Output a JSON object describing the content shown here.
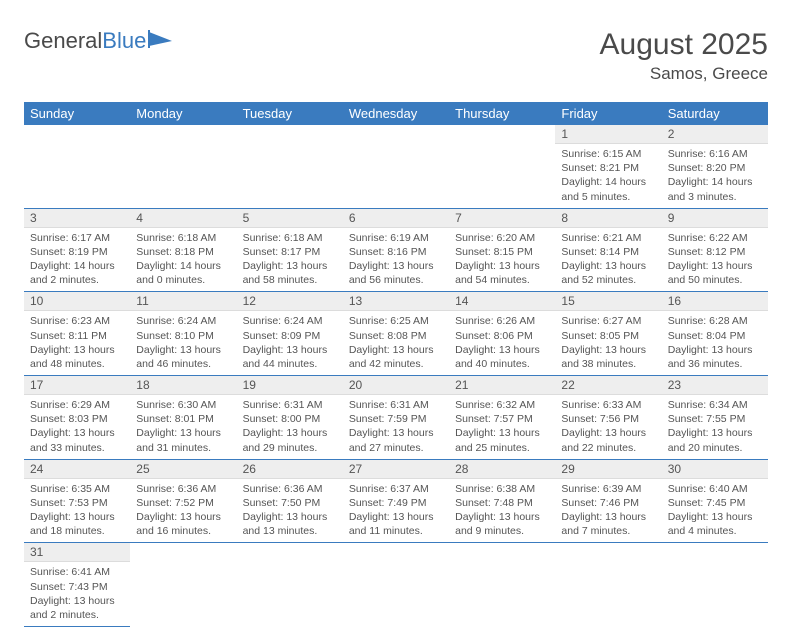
{
  "logo": {
    "word1": "General",
    "word2": "Blue"
  },
  "title": "August 2025",
  "location": "Samos, Greece",
  "colors": {
    "header_bg": "#3a7bbf",
    "header_text": "#ffffff",
    "daynum_bg": "#eeeeee",
    "row_divider": "#3a7bbf",
    "text": "#4a4a4a"
  },
  "weekdays": [
    "Sunday",
    "Monday",
    "Tuesday",
    "Wednesday",
    "Thursday",
    "Friday",
    "Saturday"
  ],
  "grid": [
    [
      null,
      null,
      null,
      null,
      null,
      {
        "n": "1",
        "sr": "6:15 AM",
        "ss": "8:21 PM",
        "dh": "14",
        "dm": "5"
      },
      {
        "n": "2",
        "sr": "6:16 AM",
        "ss": "8:20 PM",
        "dh": "14",
        "dm": "3"
      }
    ],
    [
      {
        "n": "3",
        "sr": "6:17 AM",
        "ss": "8:19 PM",
        "dh": "14",
        "dm": "2"
      },
      {
        "n": "4",
        "sr": "6:18 AM",
        "ss": "8:18 PM",
        "dh": "14",
        "dm": "0"
      },
      {
        "n": "5",
        "sr": "6:18 AM",
        "ss": "8:17 PM",
        "dh": "13",
        "dm": "58"
      },
      {
        "n": "6",
        "sr": "6:19 AM",
        "ss": "8:16 PM",
        "dh": "13",
        "dm": "56"
      },
      {
        "n": "7",
        "sr": "6:20 AM",
        "ss": "8:15 PM",
        "dh": "13",
        "dm": "54"
      },
      {
        "n": "8",
        "sr": "6:21 AM",
        "ss": "8:14 PM",
        "dh": "13",
        "dm": "52"
      },
      {
        "n": "9",
        "sr": "6:22 AM",
        "ss": "8:12 PM",
        "dh": "13",
        "dm": "50"
      }
    ],
    [
      {
        "n": "10",
        "sr": "6:23 AM",
        "ss": "8:11 PM",
        "dh": "13",
        "dm": "48"
      },
      {
        "n": "11",
        "sr": "6:24 AM",
        "ss": "8:10 PM",
        "dh": "13",
        "dm": "46"
      },
      {
        "n": "12",
        "sr": "6:24 AM",
        "ss": "8:09 PM",
        "dh": "13",
        "dm": "44"
      },
      {
        "n": "13",
        "sr": "6:25 AM",
        "ss": "8:08 PM",
        "dh": "13",
        "dm": "42"
      },
      {
        "n": "14",
        "sr": "6:26 AM",
        "ss": "8:06 PM",
        "dh": "13",
        "dm": "40"
      },
      {
        "n": "15",
        "sr": "6:27 AM",
        "ss": "8:05 PM",
        "dh": "13",
        "dm": "38"
      },
      {
        "n": "16",
        "sr": "6:28 AM",
        "ss": "8:04 PM",
        "dh": "13",
        "dm": "36"
      }
    ],
    [
      {
        "n": "17",
        "sr": "6:29 AM",
        "ss": "8:03 PM",
        "dh": "13",
        "dm": "33"
      },
      {
        "n": "18",
        "sr": "6:30 AM",
        "ss": "8:01 PM",
        "dh": "13",
        "dm": "31"
      },
      {
        "n": "19",
        "sr": "6:31 AM",
        "ss": "8:00 PM",
        "dh": "13",
        "dm": "29"
      },
      {
        "n": "20",
        "sr": "6:31 AM",
        "ss": "7:59 PM",
        "dh": "13",
        "dm": "27"
      },
      {
        "n": "21",
        "sr": "6:32 AM",
        "ss": "7:57 PM",
        "dh": "13",
        "dm": "25"
      },
      {
        "n": "22",
        "sr": "6:33 AM",
        "ss": "7:56 PM",
        "dh": "13",
        "dm": "22"
      },
      {
        "n": "23",
        "sr": "6:34 AM",
        "ss": "7:55 PM",
        "dh": "13",
        "dm": "20"
      }
    ],
    [
      {
        "n": "24",
        "sr": "6:35 AM",
        "ss": "7:53 PM",
        "dh": "13",
        "dm": "18"
      },
      {
        "n": "25",
        "sr": "6:36 AM",
        "ss": "7:52 PM",
        "dh": "13",
        "dm": "16"
      },
      {
        "n": "26",
        "sr": "6:36 AM",
        "ss": "7:50 PM",
        "dh": "13",
        "dm": "13"
      },
      {
        "n": "27",
        "sr": "6:37 AM",
        "ss": "7:49 PM",
        "dh": "13",
        "dm": "11"
      },
      {
        "n": "28",
        "sr": "6:38 AM",
        "ss": "7:48 PM",
        "dh": "13",
        "dm": "9"
      },
      {
        "n": "29",
        "sr": "6:39 AM",
        "ss": "7:46 PM",
        "dh": "13",
        "dm": "7"
      },
      {
        "n": "30",
        "sr": "6:40 AM",
        "ss": "7:45 PM",
        "dh": "13",
        "dm": "4"
      }
    ],
    [
      {
        "n": "31",
        "sr": "6:41 AM",
        "ss": "7:43 PM",
        "dh": "13",
        "dm": "2"
      },
      null,
      null,
      null,
      null,
      null,
      null
    ]
  ]
}
